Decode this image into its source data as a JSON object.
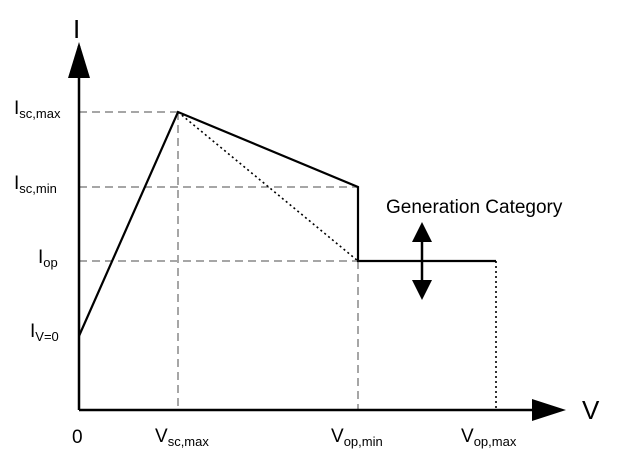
{
  "axes": {
    "y_label": "I",
    "x_label": "V",
    "origin_label": "0"
  },
  "y_ticks": [
    {
      "main": "I",
      "sub": "sc,max"
    },
    {
      "main": "I",
      "sub": "sc,min"
    },
    {
      "main": "I",
      "sub": "op"
    },
    {
      "main": "I",
      "sub": "V=0"
    }
  ],
  "x_ticks": [
    {
      "main": "V",
      "sub": "sc,max"
    },
    {
      "main": "V",
      "sub": "op,min"
    },
    {
      "main": "V",
      "sub": "op,max"
    }
  ],
  "annotation": {
    "text": "Generation Category"
  },
  "colors": {
    "line": "#000000",
    "guide": "#a6a6a6"
  }
}
